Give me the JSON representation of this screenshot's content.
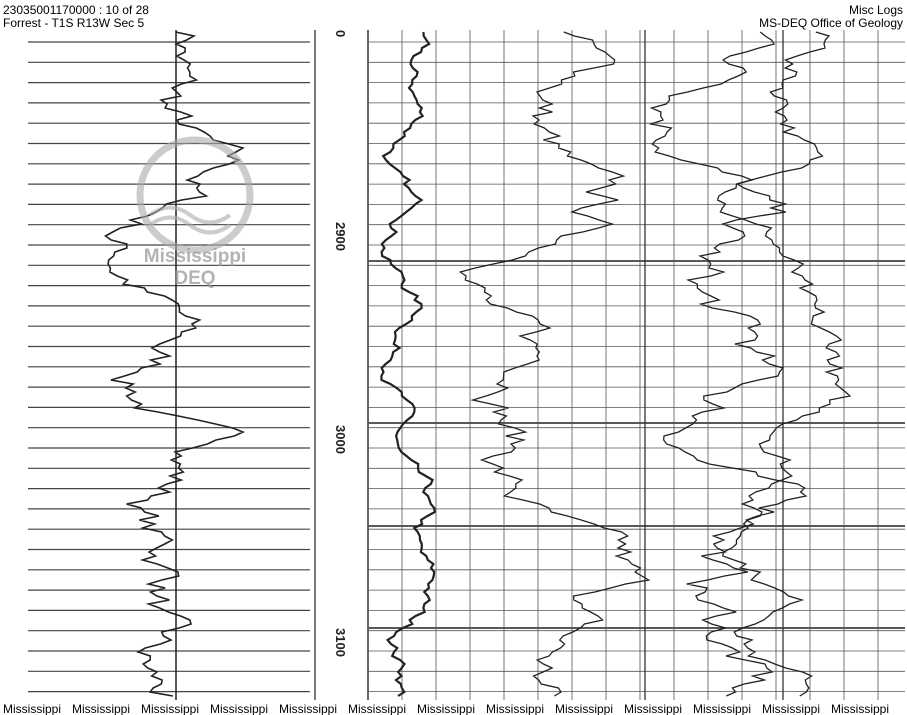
{
  "header": {
    "left": [
      "23035001170000 : 10 of 28",
      "Forrest - T1S R13W Sec 5"
    ],
    "right": [
      "Misc Logs",
      "MS-DEQ Office of Geology"
    ]
  },
  "depth_labels": [
    "0",
    "2900",
    "3000",
    "3100"
  ],
  "watermark": [
    "Mississippi",
    "DEQ"
  ],
  "footer": [
    "Mississippi",
    "Mississippi",
    "Mississippi",
    "Mississippi",
    "Mississippi",
    "Mississippi",
    "Mississippi",
    "Mississippi",
    "Mississippi",
    "Mississippi",
    "Mississippi",
    "Mississippi",
    "Mississippi"
  ]
}
